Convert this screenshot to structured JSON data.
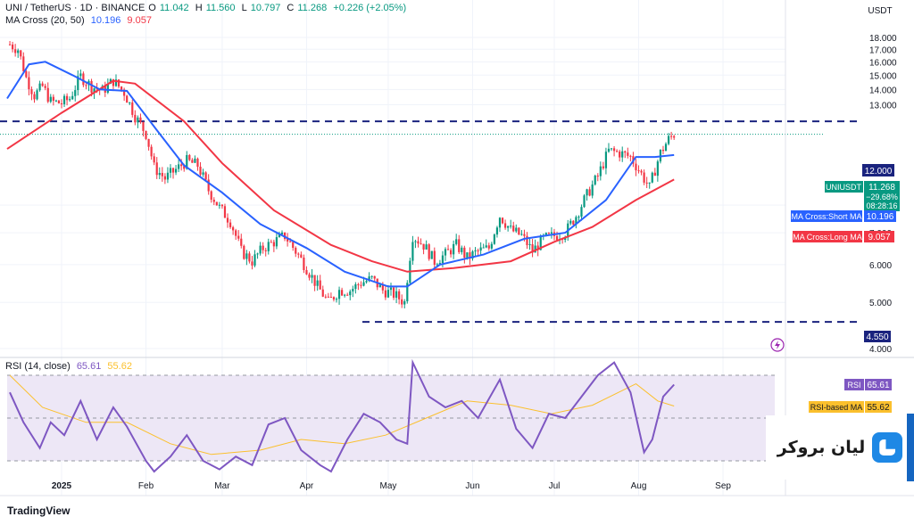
{
  "header": {
    "symbol": "UNI / TetherUS · 1D · BINANCE",
    "open_label": "O",
    "open": "11.042",
    "high_label": "H",
    "high": "11.560",
    "low_label": "L",
    "low": "10.797",
    "close_label": "C",
    "close": "11.268",
    "change": "+0.226 (+2.05%)",
    "ma_label": "MA Cross (20, 50)",
    "ma_short": "10.196",
    "ma_long": "9.057"
  },
  "rsi_header": {
    "label": "RSI (14, close)",
    "rsi": "65.61",
    "rsi_ma": "55.62"
  },
  "currency": "USDT",
  "price_badges": {
    "resistance": "12.000",
    "symbol_tag": "UNIUSDT",
    "last": "11.268",
    "change_pct": "−29.68%",
    "countdown": "08:28:16",
    "short_ma_tag": "MA Cross:Short MA",
    "short_ma": "10.196",
    "long_ma_tag": "MA Cross:Long MA",
    "long_ma": "9.057",
    "support": "4.550",
    "rsi_tag": "RSI",
    "rsi": "65.61",
    "rsi_ma_tag": "RSI-based MA",
    "rsi_ma": "55.62"
  },
  "broker_logo": "لیان بروکر",
  "brand": "TradingView",
  "colors": {
    "up": "#089981",
    "down": "#f23645",
    "short_ma": "#2962ff",
    "long_ma": "#f23645",
    "level": "#1a237e",
    "rsi": "#7e57c2",
    "rsi_ma": "#fbc02d",
    "rsi_band": "#ede7f6"
  },
  "chart_data": {
    "type": "candlestick",
    "price_axis": {
      "scale": "log",
      "ticks": [
        "18.000",
        "17.000",
        "16.000",
        "15.000",
        "14.000",
        "13.000",
        "8.000",
        "7.000",
        "6.000",
        "5.000",
        "4.000"
      ]
    },
    "time_axis": {
      "range": [
        "2024-12-12",
        "2025-09-20"
      ],
      "ticks": [
        {
          "date": "2025-01-01",
          "label": "2025"
        },
        {
          "date": "2025-02-01",
          "label": "Feb"
        },
        {
          "date": "2025-03-01",
          "label": "Mar"
        },
        {
          "date": "2025-04-01",
          "label": "Apr"
        },
        {
          "date": "2025-05-01",
          "label": "May"
        },
        {
          "date": "2025-06-01",
          "label": "Jun"
        },
        {
          "date": "2025-07-01",
          "label": "Jul"
        },
        {
          "date": "2025-08-01",
          "label": "Aug"
        },
        {
          "date": "2025-09-01",
          "label": "Sep"
        }
      ]
    },
    "levels": [
      12.0,
      4.55
    ],
    "price_path": [
      [
        "2024-12-13",
        17.4
      ],
      [
        "2024-12-16",
        17.0
      ],
      [
        "2024-12-19",
        14.8
      ],
      [
        "2024-12-22",
        13.6
      ],
      [
        "2024-12-25",
        14.2
      ],
      [
        "2024-12-28",
        13.2
      ],
      [
        "2025-01-01",
        13.1
      ],
      [
        "2025-01-04",
        13.4
      ],
      [
        "2025-01-08",
        14.9
      ],
      [
        "2025-01-12",
        14.2
      ],
      [
        "2025-01-16",
        13.9
      ],
      [
        "2025-01-20",
        14.6
      ],
      [
        "2025-01-24",
        13.8
      ],
      [
        "2025-01-28",
        12.3
      ],
      [
        "2025-02-01",
        11.3
      ],
      [
        "2025-02-04",
        9.6
      ],
      [
        "2025-02-08",
        9.1
      ],
      [
        "2025-02-12",
        9.5
      ],
      [
        "2025-02-16",
        9.9
      ],
      [
        "2025-02-20",
        9.7
      ],
      [
        "2025-02-24",
        8.6
      ],
      [
        "2025-02-28",
        7.9
      ],
      [
        "2025-03-04",
        7.4
      ],
      [
        "2025-03-08",
        6.4
      ],
      [
        "2025-03-12",
        6.1
      ],
      [
        "2025-03-16",
        6.5
      ],
      [
        "2025-03-20",
        6.7
      ],
      [
        "2025-03-24",
        6.9
      ],
      [
        "2025-03-28",
        6.4
      ],
      [
        "2025-04-01",
        5.9
      ],
      [
        "2025-04-05",
        5.4
      ],
      [
        "2025-04-09",
        5.0
      ],
      [
        "2025-04-13",
        5.3
      ],
      [
        "2025-04-17",
        5.3
      ],
      [
        "2025-04-21",
        5.5
      ],
      [
        "2025-04-25",
        5.6
      ],
      [
        "2025-04-29",
        5.3
      ],
      [
        "2025-05-03",
        5.2
      ],
      [
        "2025-05-07",
        5.0
      ],
      [
        "2025-05-10",
        6.9
      ],
      [
        "2025-05-14",
        6.6
      ],
      [
        "2025-05-18",
        6.1
      ],
      [
        "2025-05-22",
        6.3
      ],
      [
        "2025-05-26",
        6.6
      ],
      [
        "2025-05-30",
        6.2
      ],
      [
        "2025-06-03",
        6.4
      ],
      [
        "2025-06-07",
        6.5
      ],
      [
        "2025-06-11",
        7.6
      ],
      [
        "2025-06-15",
        7.1
      ],
      [
        "2025-06-19",
        6.9
      ],
      [
        "2025-06-23",
        6.4
      ],
      [
        "2025-06-27",
        6.8
      ],
      [
        "2025-07-01",
        6.9
      ],
      [
        "2025-07-05",
        7.0
      ],
      [
        "2025-07-09",
        7.6
      ],
      [
        "2025-07-13",
        8.4
      ],
      [
        "2025-07-17",
        9.2
      ],
      [
        "2025-07-21",
        10.4
      ],
      [
        "2025-07-25",
        10.3
      ],
      [
        "2025-07-29",
        10.1
      ],
      [
        "2025-08-02",
        9.3
      ],
      [
        "2025-08-05",
        8.7
      ],
      [
        "2025-08-09",
        10.3
      ],
      [
        "2025-08-12",
        11.0
      ],
      [
        "2025-08-14",
        11.27
      ]
    ],
    "short_ma_path": [
      [
        "2024-12-12",
        13.4
      ],
      [
        "2024-12-20",
        15.8
      ],
      [
        "2024-12-26",
        16.0
      ],
      [
        "2025-01-05",
        15.0
      ],
      [
        "2025-01-15",
        14.0
      ],
      [
        "2025-01-25",
        13.9
      ],
      [
        "2025-02-05",
        11.5
      ],
      [
        "2025-02-15",
        9.7
      ],
      [
        "2025-03-01",
        8.5
      ],
      [
        "2025-03-15",
        7.3
      ],
      [
        "2025-04-01",
        6.5
      ],
      [
        "2025-04-15",
        5.8
      ],
      [
        "2025-05-01",
        5.4
      ],
      [
        "2025-05-08",
        5.4
      ],
      [
        "2025-05-20",
        6.0
      ],
      [
        "2025-06-05",
        6.3
      ],
      [
        "2025-06-20",
        6.8
      ],
      [
        "2025-07-05",
        7.0
      ],
      [
        "2025-07-20",
        8.2
      ],
      [
        "2025-07-31",
        10.1
      ],
      [
        "2025-08-07",
        10.1
      ],
      [
        "2025-08-14",
        10.196
      ]
    ],
    "long_ma_path": [
      [
        "2024-12-12",
        10.5
      ],
      [
        "2025-01-01",
        12.5
      ],
      [
        "2025-01-20",
        14.6
      ],
      [
        "2025-01-28",
        14.4
      ],
      [
        "2025-02-15",
        12.0
      ],
      [
        "2025-03-01",
        9.8
      ],
      [
        "2025-03-20",
        7.8
      ],
      [
        "2025-04-10",
        6.6
      ],
      [
        "2025-04-25",
        6.1
      ],
      [
        "2025-05-08",
        5.8
      ],
      [
        "2025-05-25",
        5.9
      ],
      [
        "2025-06-15",
        6.1
      ],
      [
        "2025-07-01",
        6.7
      ],
      [
        "2025-07-15",
        7.2
      ],
      [
        "2025-07-31",
        8.2
      ],
      [
        "2025-08-14",
        9.057
      ]
    ],
    "rsi": {
      "levels": [
        70,
        50,
        30
      ],
      "rsi_path": [
        [
          "2024-12-13",
          62
        ],
        [
          "2024-12-18",
          48
        ],
        [
          "2024-12-24",
          36
        ],
        [
          "2024-12-28",
          48
        ],
        [
          "2025-01-02",
          42
        ],
        [
          "2025-01-08",
          58
        ],
        [
          "2025-01-14",
          40
        ],
        [
          "2025-01-20",
          55
        ],
        [
          "2025-01-25",
          46
        ],
        [
          "2025-02-01",
          30
        ],
        [
          "2025-02-04",
          25
        ],
        [
          "2025-02-10",
          32
        ],
        [
          "2025-02-16",
          42
        ],
        [
          "2025-02-22",
          30
        ],
        [
          "2025-02-28",
          26
        ],
        [
          "2025-03-06",
          32
        ],
        [
          "2025-03-12",
          28
        ],
        [
          "2025-03-18",
          47
        ],
        [
          "2025-03-24",
          50
        ],
        [
          "2025-03-30",
          35
        ],
        [
          "2025-04-06",
          28
        ],
        [
          "2025-04-10",
          25
        ],
        [
          "2025-04-16",
          40
        ],
        [
          "2025-04-22",
          52
        ],
        [
          "2025-04-28",
          48
        ],
        [
          "2025-05-04",
          40
        ],
        [
          "2025-05-08",
          38
        ],
        [
          "2025-05-10",
          76
        ],
        [
          "2025-05-16",
          60
        ],
        [
          "2025-05-22",
          55
        ],
        [
          "2025-05-28",
          58
        ],
        [
          "2025-06-03",
          50
        ],
        [
          "2025-06-11",
          68
        ],
        [
          "2025-06-17",
          45
        ],
        [
          "2025-06-23",
          36
        ],
        [
          "2025-06-29",
          52
        ],
        [
          "2025-07-05",
          50
        ],
        [
          "2025-07-11",
          60
        ],
        [
          "2025-07-17",
          70
        ],
        [
          "2025-07-23",
          76
        ],
        [
          "2025-07-29",
          62
        ],
        [
          "2025-08-03",
          34
        ],
        [
          "2025-08-06",
          40
        ],
        [
          "2025-08-10",
          60
        ],
        [
          "2025-08-14",
          65.61
        ]
      ],
      "rsi_ma_path": [
        [
          "2024-12-13",
          70
        ],
        [
          "2024-12-25",
          55
        ],
        [
          "2025-01-10",
          48
        ],
        [
          "2025-01-25",
          48
        ],
        [
          "2025-02-10",
          38
        ],
        [
          "2025-02-25",
          33
        ],
        [
          "2025-03-15",
          35
        ],
        [
          "2025-03-30",
          40
        ],
        [
          "2025-04-15",
          38
        ],
        [
          "2025-04-30",
          42
        ],
        [
          "2025-05-15",
          50
        ],
        [
          "2025-05-30",
          58
        ],
        [
          "2025-06-15",
          56
        ],
        [
          "2025-06-30",
          52
        ],
        [
          "2025-07-15",
          56
        ],
        [
          "2025-07-31",
          66
        ],
        [
          "2025-08-08",
          58
        ],
        [
          "2025-08-14",
          55.62
        ]
      ]
    }
  }
}
